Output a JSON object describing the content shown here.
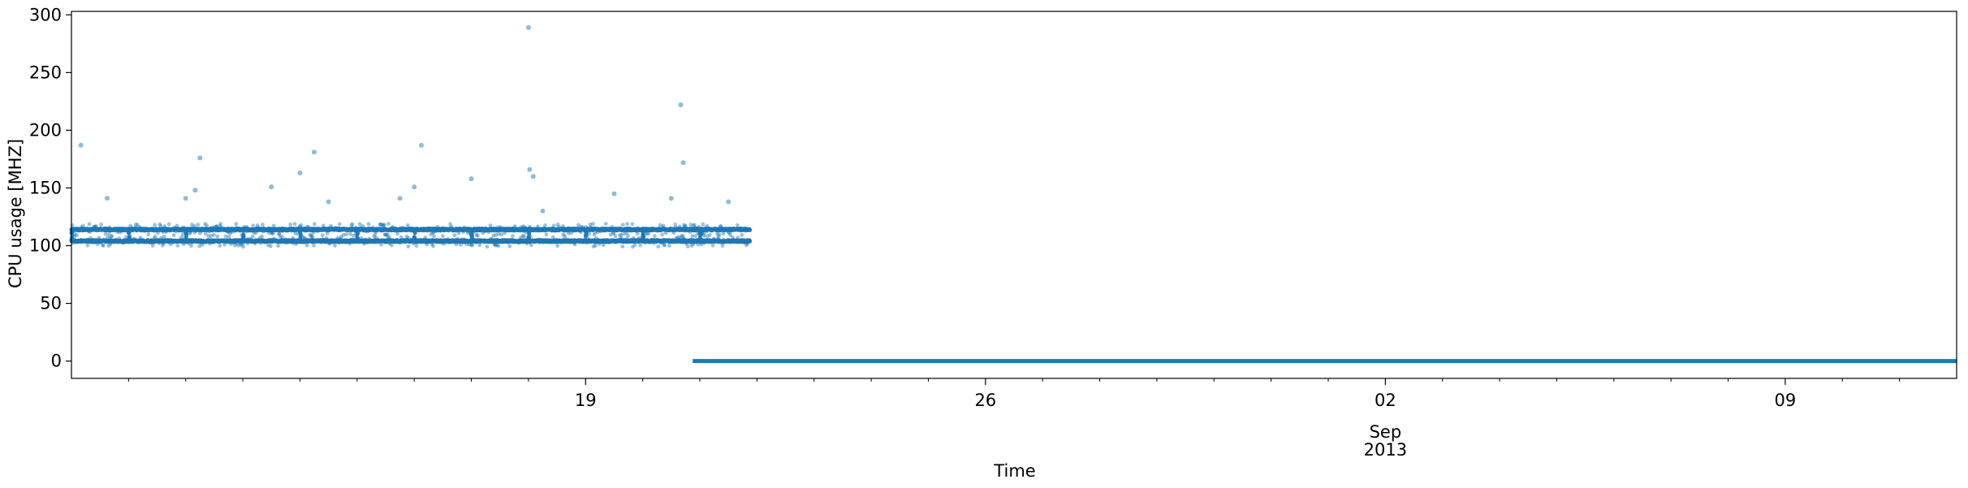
{
  "chart_data": {
    "type": "scatter",
    "title": "",
    "xlabel": "Time",
    "ylabel": "CPU usage [MHZ]",
    "x_range": [
      "2013-08-10",
      "2013-09-12"
    ],
    "ylim": [
      -15,
      303
    ],
    "y_ticks": [
      0,
      50,
      100,
      150,
      200,
      250,
      300
    ],
    "x_major_ticks": [
      {
        "date": "2013-08-19",
        "label": "19"
      },
      {
        "date": "2013-08-26",
        "label": "26"
      },
      {
        "date": "2013-09-02",
        "label": "02"
      },
      {
        "date": "2013-09-09",
        "label": "09"
      }
    ],
    "x_secondary_label": {
      "date": "2013-09-02",
      "month": "Sep",
      "year": "2013"
    },
    "x_minor_ticks": [
      "2013-08-11",
      "2013-08-12",
      "2013-08-13",
      "2013-08-14",
      "2013-08-15",
      "2013-08-16",
      "2013-08-17",
      "2013-08-18",
      "2013-08-20",
      "2013-08-21",
      "2013-08-22",
      "2013-08-23",
      "2013-08-24",
      "2013-08-25",
      "2013-08-27",
      "2013-08-28",
      "2013-08-29",
      "2013-08-30",
      "2013-08-31",
      "2013-09-01",
      "2013-09-03",
      "2013-09-04",
      "2013-09-05",
      "2013-09-06",
      "2013-09-07",
      "2013-09-08",
      "2013-09-10",
      "2013-09-11"
    ],
    "grid": false,
    "legend": "none",
    "marker_color": "#1f77b4",
    "series": [
      {
        "values_summary": "dense scatter oscillating between two bands near 104 and 114 MHz from 2013-08-10 to about 2013-08-19",
        "band_levels": [
          104,
          114
        ],
        "start": "2013-08-10",
        "end": "2013-08-19",
        "outliers": [
          {
            "x": "2013-08-10 04:00",
            "y": 187
          },
          {
            "x": "2013-08-10 15:00",
            "y": 141
          },
          {
            "x": "2013-08-12 00:00",
            "y": 141
          },
          {
            "x": "2013-08-12 04:00",
            "y": 148
          },
          {
            "x": "2013-08-12 06:00",
            "y": 176
          },
          {
            "x": "2013-08-13 12:00",
            "y": 151
          },
          {
            "x": "2013-08-14 00:00",
            "y": 163
          },
          {
            "x": "2013-08-14 06:00",
            "y": 181
          },
          {
            "x": "2013-08-14 12:00",
            "y": 138
          },
          {
            "x": "2013-08-15 18:00",
            "y": 141
          },
          {
            "x": "2013-08-16 00:00",
            "y": 151
          },
          {
            "x": "2013-08-16 03:00",
            "y": 187
          },
          {
            "x": "2013-08-17 00:00",
            "y": 158
          },
          {
            "x": "2013-08-18 00:00",
            "y": 289
          },
          {
            "x": "2013-08-18 00:30",
            "y": 166
          },
          {
            "x": "2013-08-18 02:00",
            "y": 160
          },
          {
            "x": "2013-08-18 06:00",
            "y": 130
          },
          {
            "x": "2013-08-19 12:00",
            "y": 145
          },
          {
            "x": "2013-08-20 12:00",
            "y": 141
          },
          {
            "x": "2013-08-20 16:00",
            "y": 222
          },
          {
            "x": "2013-08-20 17:00",
            "y": 172
          },
          {
            "x": "2013-08-21 12:00",
            "y": 138
          }
        ]
      },
      {
        "values_summary": "constant at 0 MHz from about 2013-08-20 to 2013-09-12",
        "value": 0,
        "start": "2013-08-20 21:00",
        "end": "2013-09-12"
      }
    ]
  }
}
